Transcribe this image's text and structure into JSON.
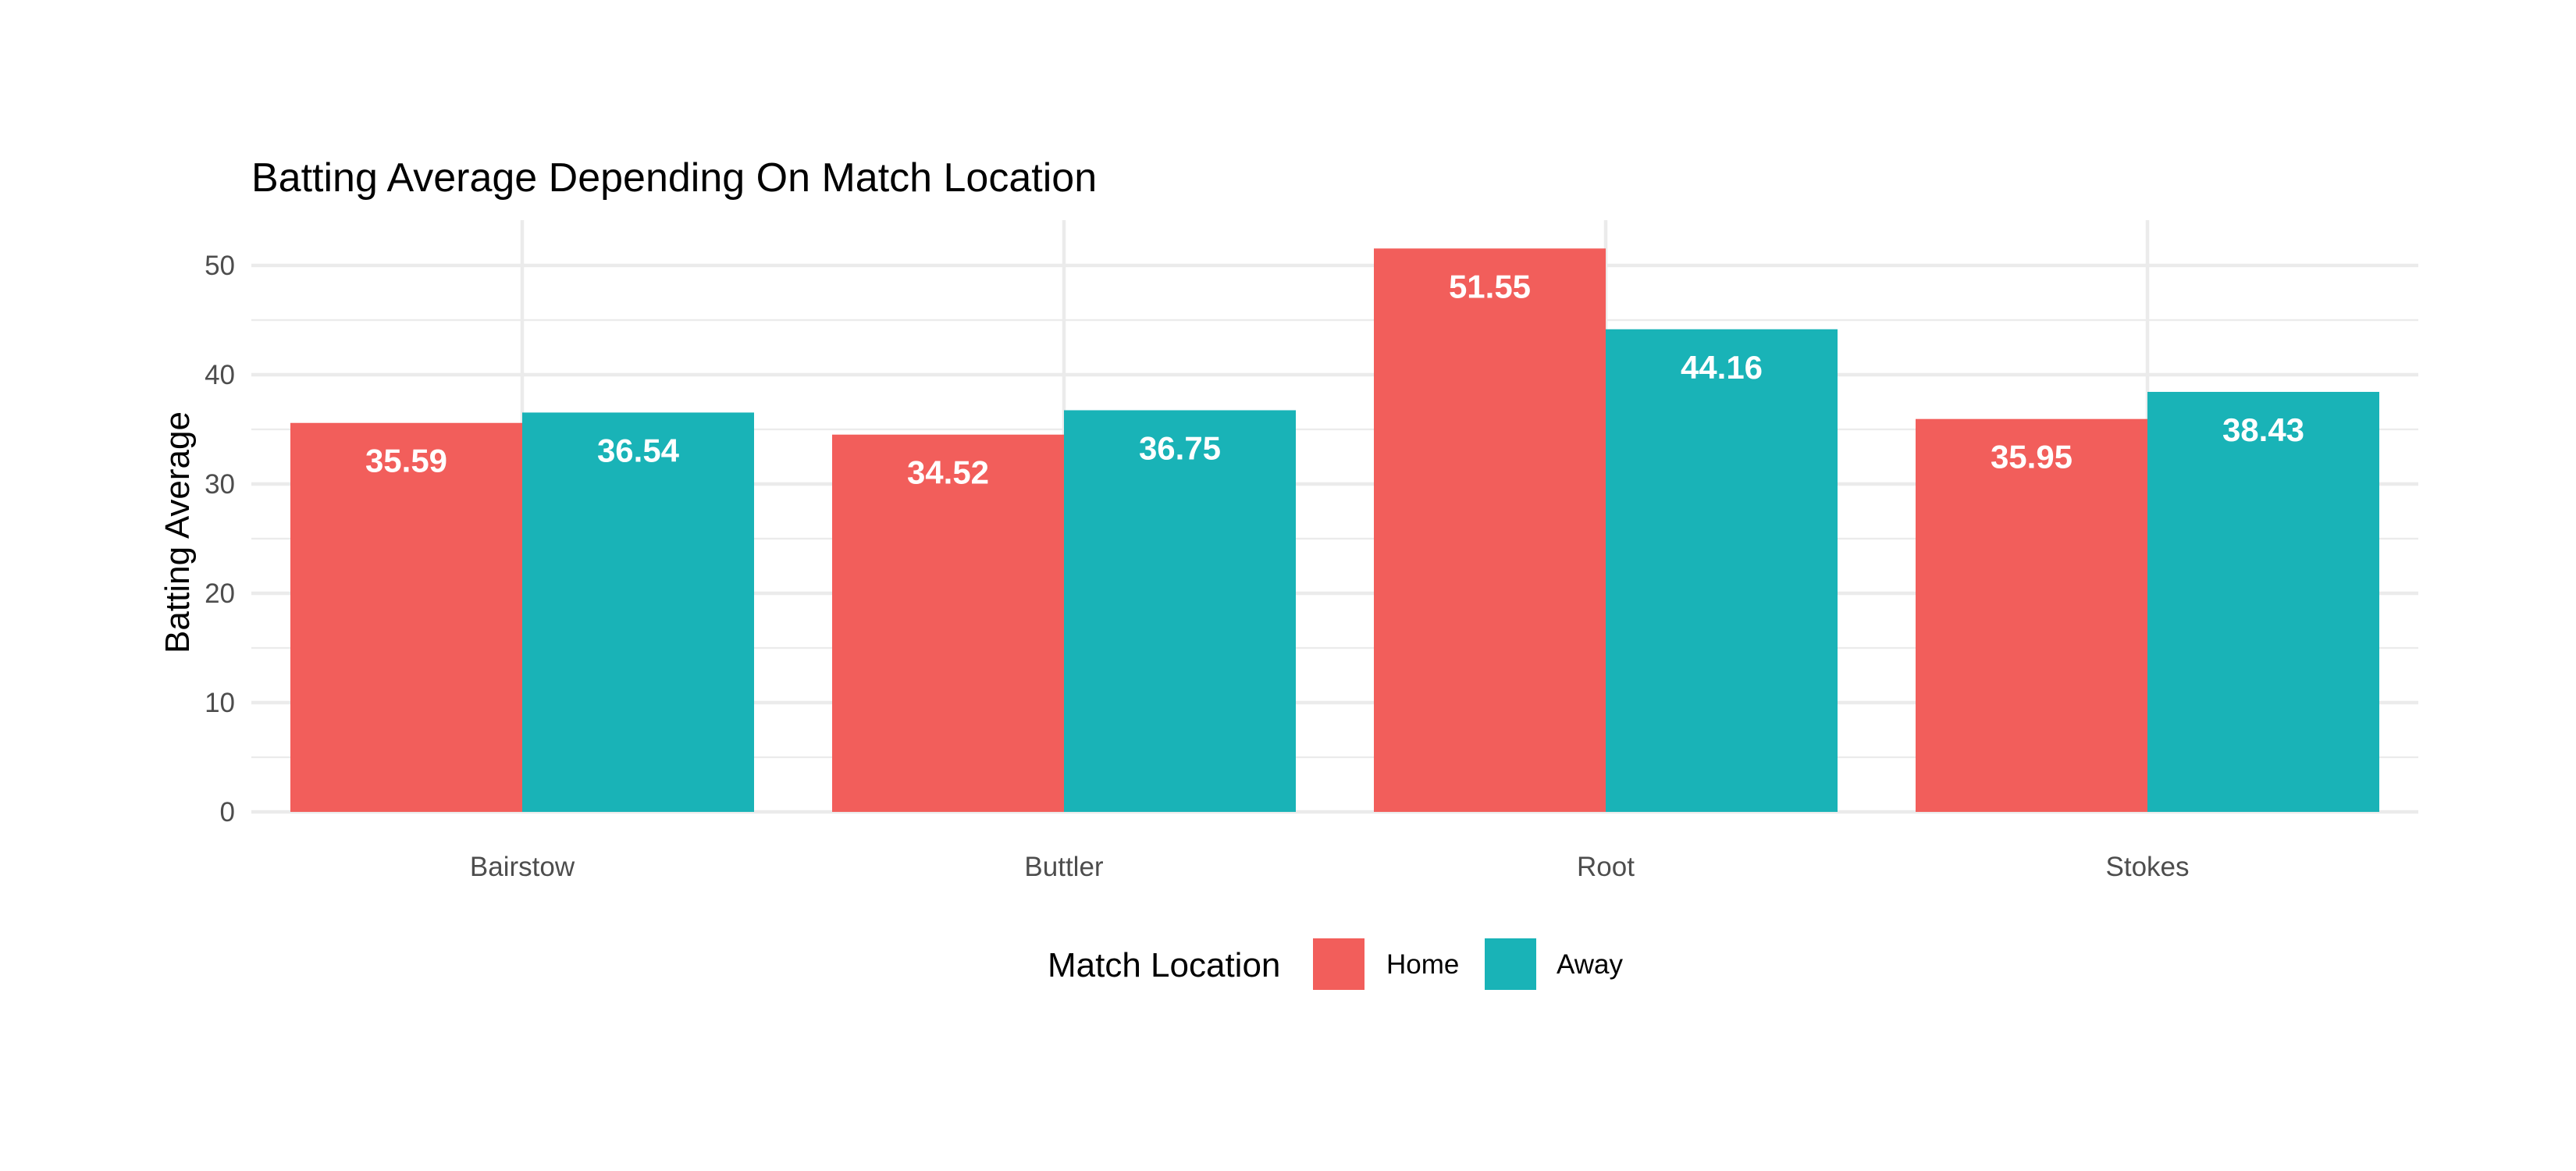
{
  "chart_data": {
    "type": "bar",
    "title": "Batting Average Depending On Match Location",
    "xlabel": "",
    "ylabel": "Batting Average",
    "categories": [
      "Bairstow",
      "Buttler",
      "Root",
      "Stokes"
    ],
    "series": [
      {
        "name": "Home",
        "values": [
          35.59,
          34.52,
          51.55,
          35.95
        ],
        "color": "#f25e5b"
      },
      {
        "name": "Away",
        "values": [
          36.54,
          36.75,
          44.16,
          38.43
        ],
        "color": "#19b3b7"
      }
    ],
    "value_labels": [
      [
        "35.59",
        "34.52",
        "51.55",
        "35.95"
      ],
      [
        "36.54",
        "36.75",
        "44.16",
        "38.43"
      ]
    ],
    "ylim": [
      0,
      54
    ],
    "yticks": [
      0,
      10,
      20,
      30,
      40,
      50
    ],
    "ytick_labels": [
      "0",
      "10",
      "20",
      "30",
      "40",
      "50"
    ],
    "grid": true,
    "legend": {
      "title": "Match Location",
      "position": "bottom",
      "entries": [
        "Home",
        "Away"
      ]
    }
  }
}
